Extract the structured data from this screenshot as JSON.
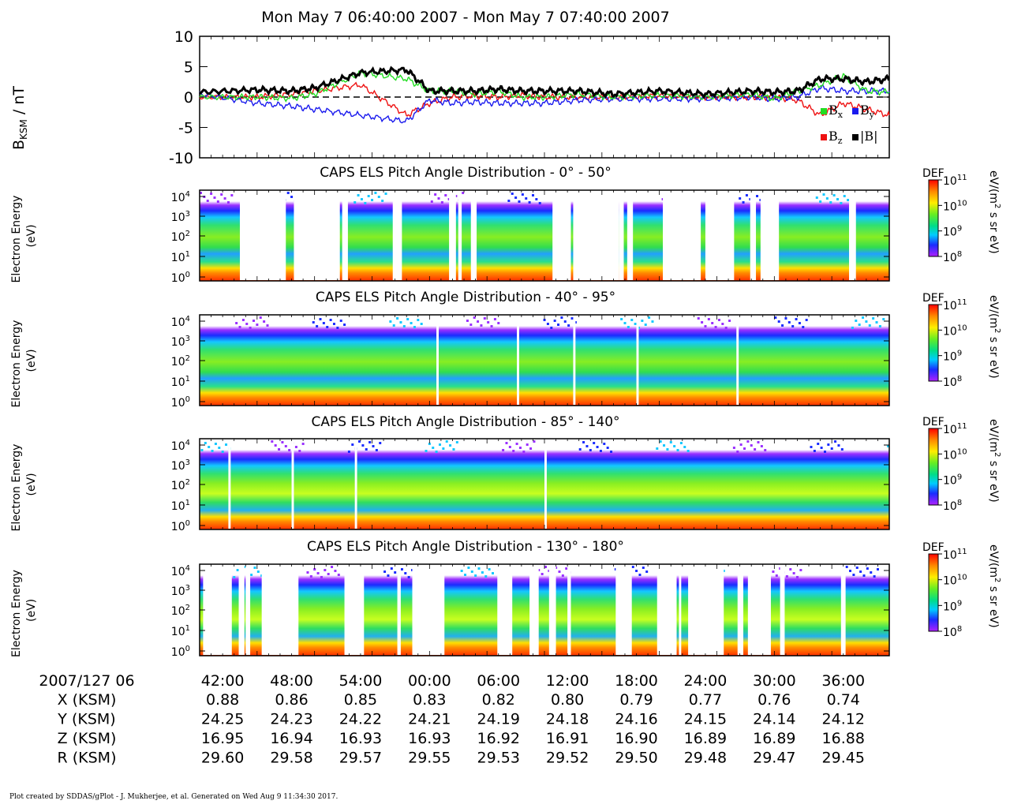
{
  "title": "Mon May 7 06:40:00 2007 - Mon May 7 07:40:00 2007",
  "footer": "Plot created by SDDAS/gPlot - J. Mukherjee, et al.  Generated on Wed Aug 9 11:34:30 2017.",
  "colors": {
    "bx": "#22dd22",
    "by": "#1a1aee",
    "bz": "#ee1111",
    "b": "#000000"
  },
  "chart_data": [
    {
      "type": "line",
      "ylabel_main": "B",
      "ylabel_sub": "KSM",
      "ylabel_unit": " / nT",
      "ylim": [
        -10,
        10
      ],
      "yticks": [
        -10,
        -5,
        0,
        5,
        10
      ],
      "x_minutes": [
        0,
        5,
        8,
        10,
        14,
        18,
        20,
        22,
        24,
        26,
        28,
        30,
        33,
        36,
        40,
        44,
        48,
        50,
        52,
        54,
        56,
        58,
        60
      ],
      "series": [
        {
          "name": "B",
          "sub": "x",
          "values": [
            0,
            0,
            -0.2,
            0.5,
            4,
            3,
            1,
            1,
            0.5,
            1,
            0,
            0,
            0.5,
            0,
            0.3,
            0,
            0.5,
            -0.3,
            1,
            2,
            3.5,
            1,
            0.8
          ]
        },
        {
          "name": "B",
          "sub": "y",
          "values": [
            0.5,
            -1,
            -1.5,
            -2,
            -3,
            -4,
            -0.5,
            -1,
            -0.8,
            -1,
            -1,
            -1,
            -0.5,
            -0.3,
            -0.3,
            -0.3,
            0,
            -0.3,
            0,
            1.5,
            1,
            1,
            1
          ]
        },
        {
          "name": "B",
          "sub": "z",
          "values": [
            0,
            0,
            0.5,
            1,
            2,
            -3,
            -1,
            0,
            0.2,
            0,
            0.3,
            0,
            0,
            0,
            0.2,
            0,
            0,
            0,
            -0.5,
            -3,
            -1,
            -2,
            -3
          ]
        },
        {
          "name": "|B|",
          "sub": "",
          "values": [
            0.8,
            1.2,
            1,
            1.5,
            4,
            4.5,
            1,
            1,
            1,
            1.3,
            1,
            1,
            1,
            0.5,
            1,
            0.5,
            1,
            0.8,
            1,
            3,
            3,
            2.5,
            3
          ]
        }
      ]
    },
    {
      "type": "heatmap",
      "title": "CAPS ELS Pitch Angle Distribution - 0° - 50°",
      "ylabel": "Electron Energy",
      "yunit": "(eV)",
      "colorbar": "DEF",
      "cb_unit_a": "eV/(m",
      "cb_unit_sup": "2",
      "cb_unit_b": " s sr eV)"
    },
    {
      "type": "heatmap",
      "title": "CAPS ELS Pitch Angle Distribution - 40° - 95°",
      "ylabel": "Electron Energy",
      "yunit": "(eV)",
      "colorbar": "DEF",
      "cb_unit_a": "eV/(m",
      "cb_unit_sup": "2",
      "cb_unit_b": " s sr eV)"
    },
    {
      "type": "heatmap",
      "title": "CAPS ELS Pitch Angle Distribution - 85° - 140°",
      "ylabel": "Electron Energy",
      "yunit": "(eV)",
      "colorbar": "DEF",
      "cb_unit_a": "eV/(m",
      "cb_unit_sup": "2",
      "cb_unit_b": " s sr eV)"
    },
    {
      "type": "heatmap",
      "title": "CAPS ELS Pitch Angle Distribution - 130° - 180°",
      "ylabel": "Electron Energy",
      "yunit": "(eV)",
      "colorbar": "DEF",
      "cb_unit_a": "eV/(m",
      "cb_unit_sup": "2",
      "cb_unit_b": " s sr eV)"
    }
  ],
  "energy_ticks": [
    {
      "base": "10",
      "exp": "4"
    },
    {
      "base": "10",
      "exp": "3"
    },
    {
      "base": "10",
      "exp": "2"
    },
    {
      "base": "10",
      "exp": "1"
    },
    {
      "base": "10",
      "exp": "0"
    }
  ],
  "colorbar_ticks": [
    {
      "base": "10",
      "exp": "11"
    },
    {
      "base": "10",
      "exp": "10"
    },
    {
      "base": "10",
      "exp": "9"
    },
    {
      "base": "10",
      "exp": "8"
    }
  ],
  "time_axis": {
    "date_label": "2007/127 06",
    "ticks": [
      "42:00",
      "48:00",
      "54:00",
      "00:00",
      "06:00",
      "12:00",
      "18:00",
      "24:00",
      "30:00",
      "36:00"
    ]
  },
  "ephemeris": [
    {
      "label": "X (KSM)",
      "values": [
        "0.88",
        "0.86",
        "0.85",
        "0.83",
        "0.82",
        "0.80",
        "0.79",
        "0.77",
        "0.76",
        "0.74"
      ]
    },
    {
      "label": "Y (KSM)",
      "values": [
        "24.25",
        "24.23",
        "24.22",
        "24.21",
        "24.19",
        "24.18",
        "24.16",
        "24.15",
        "24.14",
        "24.12"
      ]
    },
    {
      "label": "Z (KSM)",
      "values": [
        "16.95",
        "16.94",
        "16.93",
        "16.93",
        "16.92",
        "16.91",
        "16.90",
        "16.89",
        "16.89",
        "16.88"
      ]
    },
    {
      "label": "R (KSM)",
      "values": [
        "29.60",
        "29.58",
        "29.57",
        "29.55",
        "29.53",
        "29.52",
        "29.50",
        "29.48",
        "29.47",
        "29.45"
      ]
    }
  ]
}
